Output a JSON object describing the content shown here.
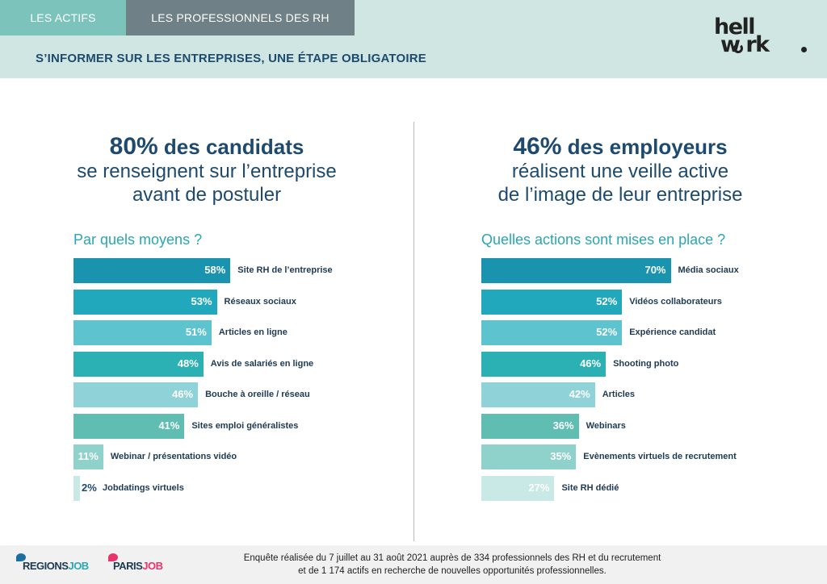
{
  "header": {
    "tabs": [
      {
        "label": "LES ACTIFS"
      },
      {
        "label": "LES PROFESSIONNELS DES RH"
      }
    ],
    "subtitle": "S’INFORMER SUR LES ENTREPRISES, UNE ÉTAPE OBLIGATOIRE",
    "logo": {
      "line1": "hell",
      "line2": "w rk"
    }
  },
  "left": {
    "stat": "80%",
    "stat_rest": " des candidats",
    "line1": "se renseignent sur l’entreprise",
    "line2": "avant de postuler",
    "question": "Par quels moyens ?"
  },
  "right": {
    "stat": "46%",
    "stat_rest": " des employeurs",
    "line1": "réalisent une veille active",
    "line2": "de l’image de leur entreprise",
    "question": "Quelles actions sont mises en place ?"
  },
  "footer": {
    "text_line1": "Enquête réalisée du 7 juillet au 31 août 2021 auprès de 334 professionnels des RH et du recrutement",
    "text_line2": "et de 1 174 actifs en recherche de nouvelles opportunités professionnelles.",
    "brand1_main": "REGIONS",
    "brand1_accent": "JOB",
    "brand2_main": "PARIS",
    "brand2_accent": "JOB"
  },
  "chart_data": [
    {
      "type": "bar",
      "orientation": "horizontal",
      "title": "Par quels moyens ?",
      "categories": [
        "Site RH de l’entreprise",
        "Réseaux sociaux",
        "Articles en ligne",
        "Avis de salariés en ligne",
        "Bouche à oreille / réseau",
        "Sites emploi généralistes",
        "Webinar / présentations vidéo",
        "Jobdatings virtuels"
      ],
      "values": [
        58,
        53,
        51,
        48,
        46,
        41,
        11,
        2
      ],
      "value_labels": [
        "58%",
        "53%",
        "51%",
        "48%",
        "46%",
        "41%",
        "11%",
        "2%"
      ],
      "colors": [
        "#1a93ae",
        "#22a8bd",
        "#5cc3cf",
        "#2bb1b4",
        "#8fd2d7",
        "#5fbdb2",
        "#8fd2cb",
        "#c9e9e6"
      ],
      "unit": "%"
    },
    {
      "type": "bar",
      "orientation": "horizontal",
      "title": "Quelles actions sont mises en place ?",
      "categories": [
        "Média sociaux",
        "Vidéos collaborateurs",
        "Expérience candidat",
        "Shooting photo",
        "Articles",
        "Webinars",
        "Evènements virtuels de recrutement",
        "Site RH dédié"
      ],
      "values": [
        70,
        52,
        52,
        46,
        42,
        36,
        35,
        27
      ],
      "value_labels": [
        "70%",
        "52%",
        "52%",
        "46%",
        "42%",
        "36%",
        "35%",
        "27%"
      ],
      "colors": [
        "#1a93ae",
        "#22a8bd",
        "#5cc3cf",
        "#2bb1b4",
        "#8fd2d7",
        "#5fbdb2",
        "#8fd2cb",
        "#c9e9e6"
      ],
      "unit": "%"
    }
  ]
}
